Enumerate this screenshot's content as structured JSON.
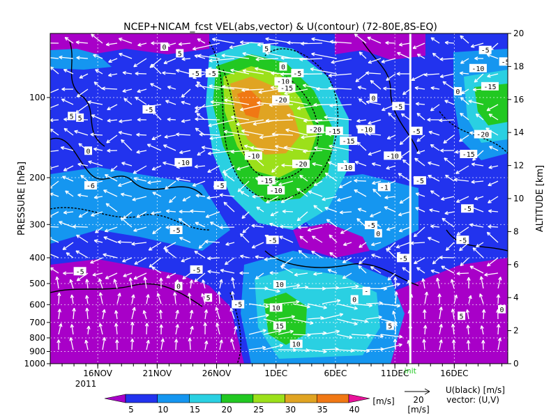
{
  "chart_data": {
    "type": "heatmap",
    "title": "NCEP+NICAM_fcst VEL(abs,vector) & U(contour)  (72-80E,8S-EQ)",
    "ylabel_left": "PRESSURE [hPa]",
    "ylabel_right": "ALTITUDE [km]",
    "pressure_ticks": [
      "100",
      "200",
      "300",
      "400",
      "500",
      "600",
      "700",
      "800",
      "900",
      "1000"
    ],
    "pressure_values": [
      100,
      200,
      300,
      400,
      500,
      600,
      700,
      800,
      900,
      1000
    ],
    "altitude_ticks": [
      "0",
      "2",
      "4",
      "6",
      "8",
      "10",
      "12",
      "14",
      "16",
      "18",
      "20"
    ],
    "altitude_values": [
      0,
      2,
      4,
      6,
      8,
      10,
      12,
      14,
      16,
      18,
      20
    ],
    "x_ticks": [
      "16NOV",
      "21NOV",
      "26NOV",
      "1DEC",
      "6DEC",
      "11DEC",
      "16DEC"
    ],
    "x_tick_days": [
      4,
      9,
      14,
      19,
      24,
      29,
      34
    ],
    "year_label": "2011",
    "x_range_days": [
      0,
      38.5
    ],
    "init_label": "init",
    "init_day": 30.3,
    "colorbar": {
      "ticks": [
        "5",
        "10",
        "15",
        "20",
        "25",
        "30",
        "35",
        "40"
      ],
      "levels": [
        5,
        10,
        15,
        20,
        25,
        30,
        35,
        40
      ],
      "colors": [
        "#a800c8",
        "#2233ee",
        "#1596f0",
        "#2ad0e2",
        "#22c822",
        "#9ce01a",
        "#e0a422",
        "#f07814",
        "#e8129a"
      ],
      "unit": "[m/s]"
    },
    "vector_legend": {
      "value": "20",
      "unit": "[m/s]"
    },
    "legend_text": {
      "line1": "U(black) [m/s]",
      "line2": "vector: (U,V)"
    },
    "contour_labels": [
      {
        "t": "5",
        "d": 10.9,
        "z": 18.8
      },
      {
        "t": "0",
        "d": 9.6,
        "z": 19.2
      },
      {
        "t": "5",
        "d": 18.2,
        "z": 19.1
      },
      {
        "t": "0",
        "d": 19.6,
        "z": 18.0
      },
      {
        "t": "-5",
        "d": 20.8,
        "z": 17.6
      },
      {
        "t": "-10",
        "d": 19.6,
        "z": 17.1
      },
      {
        "t": "-15",
        "d": 19.9,
        "z": 16.7
      },
      {
        "t": "-20",
        "d": 19.4,
        "z": 16.0
      },
      {
        "t": "-5",
        "d": 12.2,
        "z": 17.6
      },
      {
        "t": "-5",
        "d": 13.6,
        "z": 17.6
      },
      {
        "t": "0",
        "d": 27.2,
        "z": 16.1
      },
      {
        "t": "-5",
        "d": 29.3,
        "z": 15.6
      },
      {
        "t": "0",
        "d": 34.3,
        "z": 16.5
      },
      {
        "t": "-5",
        "d": 8.3,
        "z": 15.4
      },
      {
        "t": "5",
        "d": 1.8,
        "z": 15.0
      },
      {
        "t": "5",
        "d": 2.5,
        "z": 14.9
      },
      {
        "t": "-20",
        "d": 22.3,
        "z": 14.2
      },
      {
        "t": "-15",
        "d": 23.9,
        "z": 14.1
      },
      {
        "t": "-10",
        "d": 26.6,
        "z": 14.2
      },
      {
        "t": "-15",
        "d": 25.1,
        "z": 13.5
      },
      {
        "t": "-5",
        "d": 30.8,
        "z": 14.1
      },
      {
        "t": "-5",
        "d": 36.6,
        "z": 19.0
      },
      {
        "t": "-10",
        "d": 36.0,
        "z": 17.9
      },
      {
        "t": "-5",
        "d": 38.3,
        "z": 18.3
      },
      {
        "t": "-15",
        "d": 37.0,
        "z": 16.8
      },
      {
        "t": "-20",
        "d": 36.4,
        "z": 13.9
      },
      {
        "t": "-15",
        "d": 35.2,
        "z": 12.7
      },
      {
        "t": "0",
        "d": 3.2,
        "z": 12.9
      },
      {
        "t": "-10",
        "d": 11.2,
        "z": 12.2
      },
      {
        "t": "-10",
        "d": 17.1,
        "z": 12.6
      },
      {
        "t": "-20",
        "d": 21.1,
        "z": 12.1
      },
      {
        "t": "-10",
        "d": 24.9,
        "z": 11.9
      },
      {
        "t": "-10",
        "d": 28.8,
        "z": 12.6
      },
      {
        "t": "-15",
        "d": 18.2,
        "z": 11.1
      },
      {
        "t": "-10",
        "d": 19.0,
        "z": 10.5
      },
      {
        "t": "-6",
        "d": 3.4,
        "z": 10.8
      },
      {
        "t": "-5",
        "d": 14.3,
        "z": 10.8
      },
      {
        "t": "-5",
        "d": 31.1,
        "z": 11.1
      },
      {
        "t": "-1",
        "d": 28.1,
        "z": 10.7
      },
      {
        "t": "-5",
        "d": 35.1,
        "z": 9.4
      },
      {
        "t": "-5",
        "d": 10.6,
        "z": 8.1
      },
      {
        "t": "-5",
        "d": 27.0,
        "z": 8.4
      },
      {
        "t": "0",
        "d": 27.6,
        "z": 7.9
      },
      {
        "t": "-5",
        "d": 18.7,
        "z": 7.5
      },
      {
        "t": "-5",
        "d": 34.7,
        "z": 7.5
      },
      {
        "t": "-5",
        "d": 29.7,
        "z": 6.4
      },
      {
        "t": "-5",
        "d": 2.5,
        "z": 5.6
      },
      {
        "t": "-5",
        "d": 12.3,
        "z": 5.7
      },
      {
        "t": "0",
        "d": 10.8,
        "z": 4.7
      },
      {
        "t": "10",
        "d": 19.3,
        "z": 4.8
      },
      {
        "t": "5",
        "d": 13.3,
        "z": 4.0
      },
      {
        "t": "0",
        "d": 25.6,
        "z": 3.9
      },
      {
        "t": "-5",
        "d": 15.8,
        "z": 3.6
      },
      {
        "t": "10",
        "d": 19.0,
        "z": 3.4
      },
      {
        "t": "0",
        "d": 38.0,
        "z": 3.3
      },
      {
        "t": "5",
        "d": 34.6,
        "z": 2.9
      },
      {
        "t": "15",
        "d": 19.3,
        "z": 2.3
      },
      {
        "t": "5",
        "d": 28.6,
        "z": 2.3
      },
      {
        "t": "10",
        "d": 20.7,
        "z": 1.2
      },
      {
        "t": "-",
        "d": 26.6,
        "z": 4.4
      }
    ]
  }
}
